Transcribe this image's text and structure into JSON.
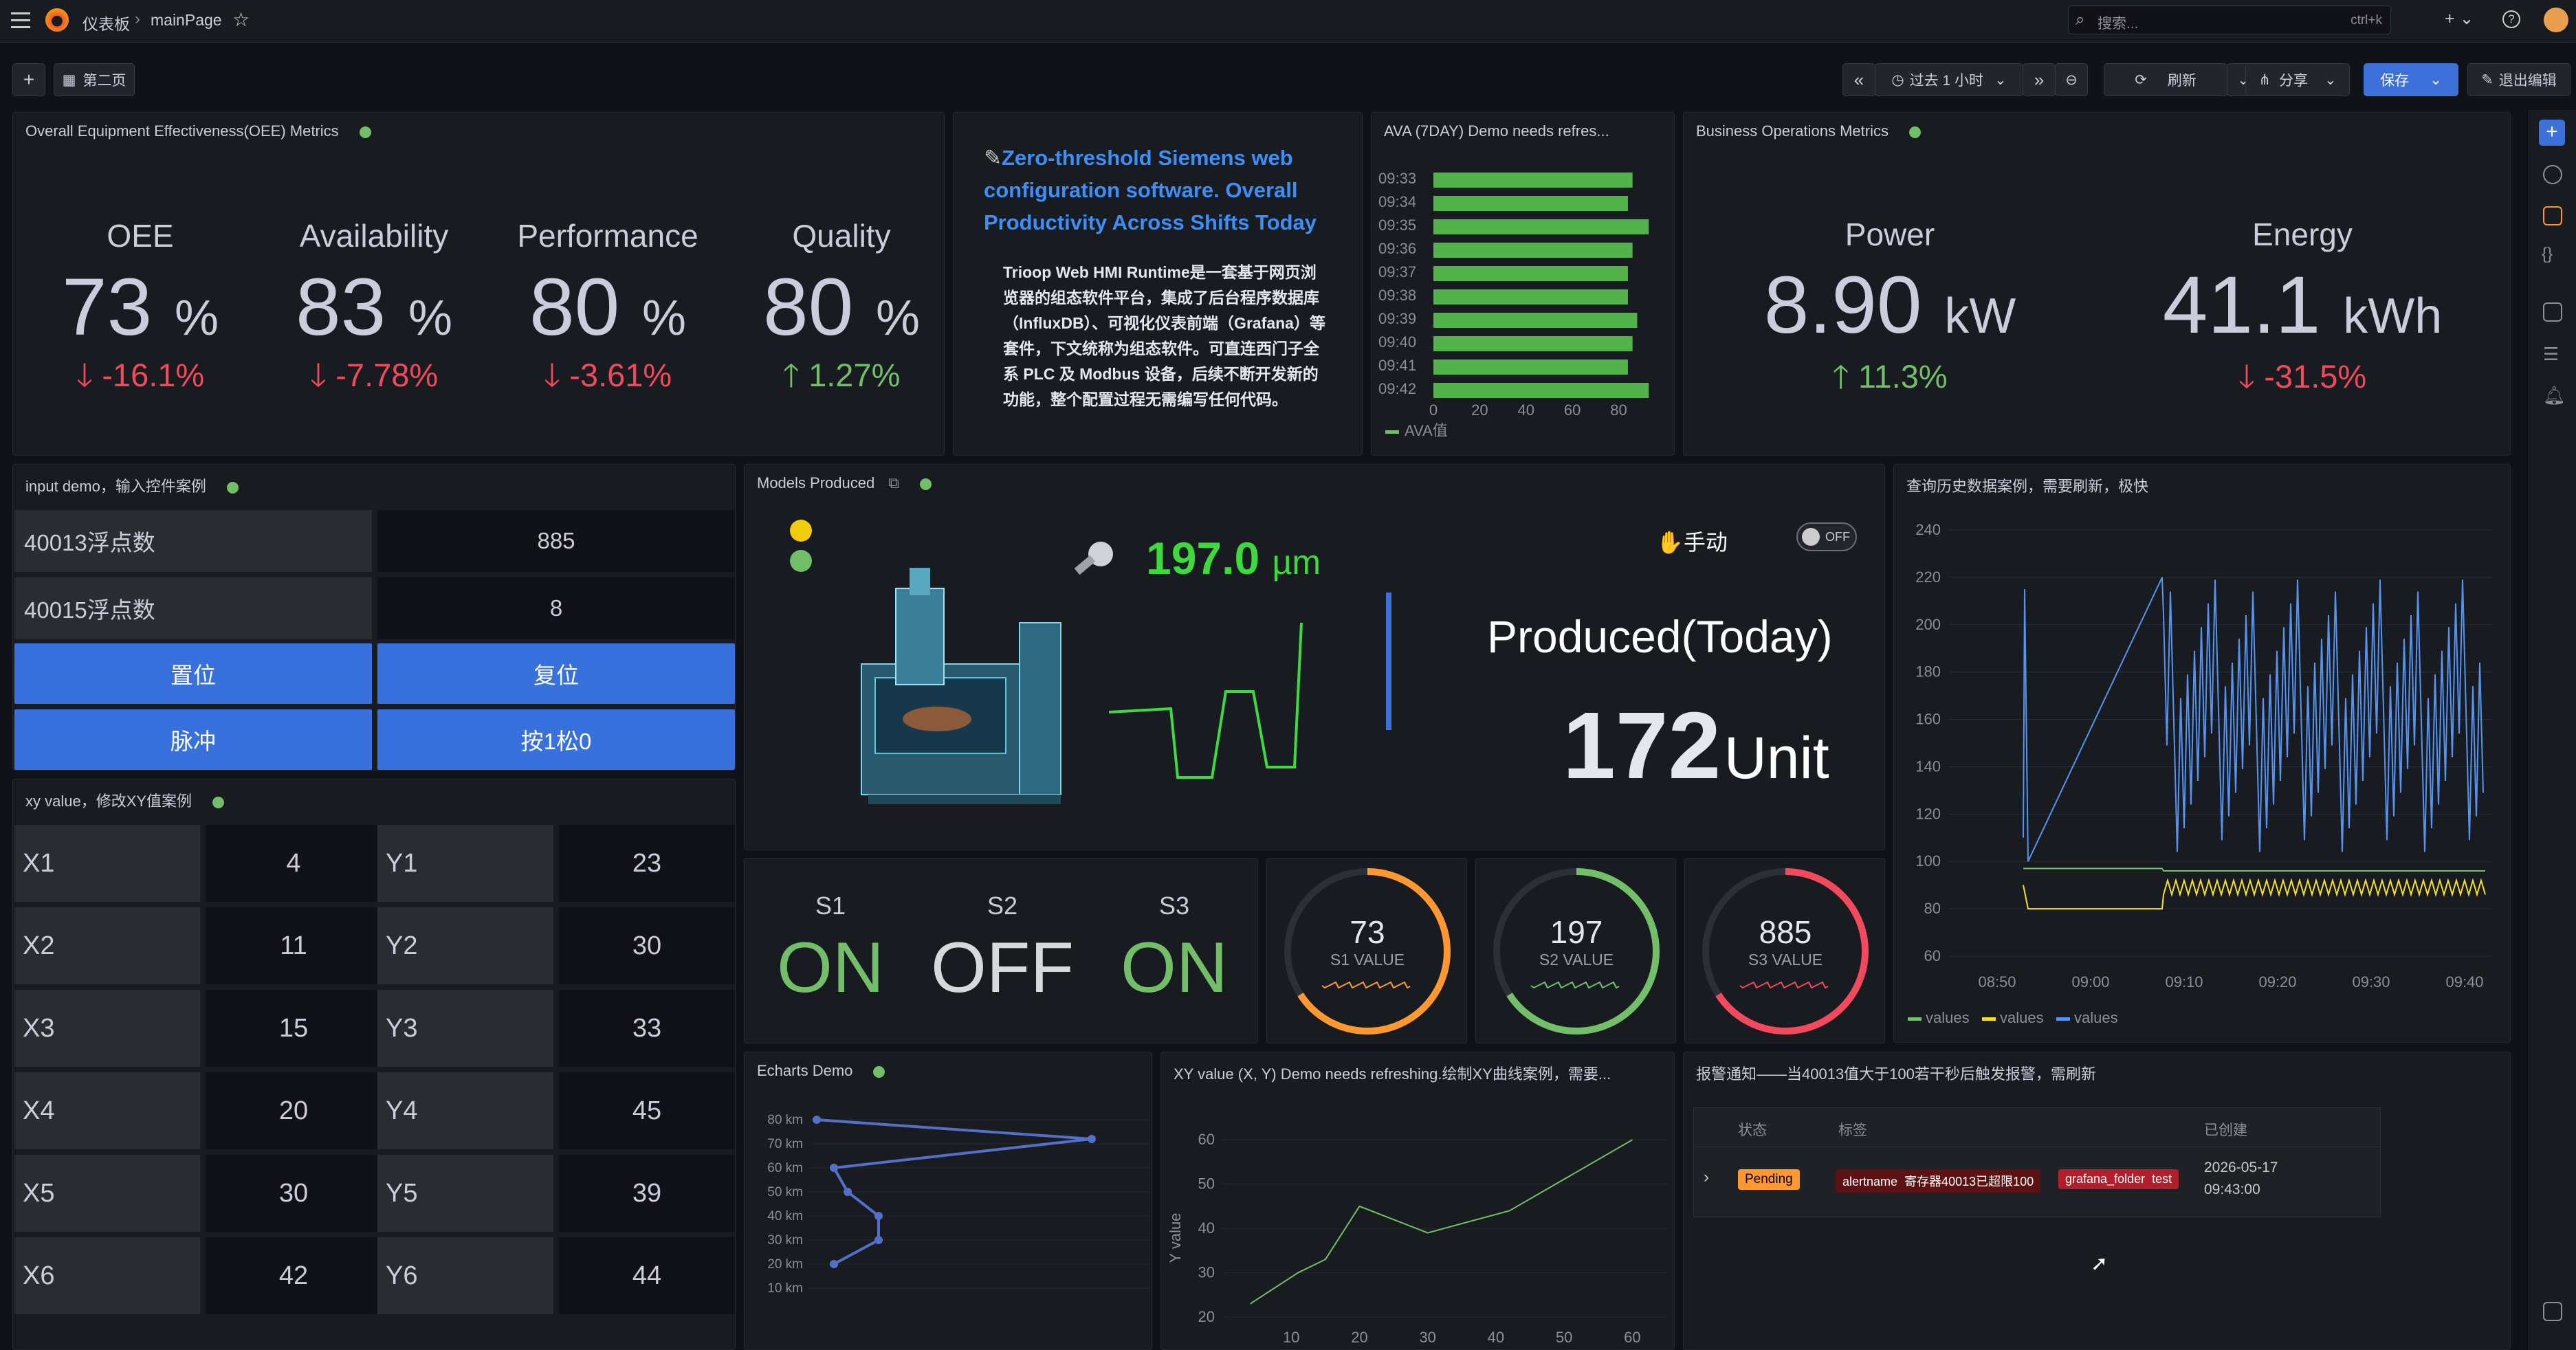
{
  "topbar": {
    "breadcrumb_dash": "仪表板",
    "breadcrumb_sep": "›",
    "breadcrumb_page": "mainPage",
    "search_placeholder": "搜索...",
    "search_shortcut": "ctrl+k",
    "add_label": "+ ⌄"
  },
  "subbar": {
    "add": "+",
    "second_page": "第二页",
    "time_range": "过去 1 小时",
    "refresh": "刷新",
    "share": "分享",
    "save": "保存",
    "exit_edit": "退出编辑"
  },
  "oee": {
    "title": "Overall Equipment Effectiveness(OEE) Metrics",
    "stats": [
      {
        "label": "OEE",
        "value": "73",
        "unit": "%",
        "delta": "-16.1%",
        "dir": "down"
      },
      {
        "label": "Availability",
        "value": "83",
        "unit": "%",
        "delta": "-7.78%",
        "dir": "down"
      },
      {
        "label": "Performance",
        "value": "80",
        "unit": "%",
        "delta": "-3.61%",
        "dir": "down"
      },
      {
        "label": "Quality",
        "value": "80",
        "unit": "%",
        "delta": "1.27%",
        "dir": "up"
      }
    ]
  },
  "intro": {
    "headline": "Zero-threshold Siemens web configuration software. Overall Productivity Across Shifts Today",
    "body": "Trioop Web HMI Runtime是一套基于网页浏览器的组态软件平台，集成了后台程序数据库（InfluxDB）、可视化仪表前端（Grafana）等套件，下文统称为组态软件。可直连西门子全系 PLC 及 Modbus 设备，后续不断开发新的功能，整个配置过程无需编写任何代码。"
  },
  "ava": {
    "title": "AVA (7DAY) Demo needs refres...",
    "legend": "AVA值",
    "xticks": [
      "0",
      "20",
      "40",
      "60",
      "80"
    ]
  },
  "business": {
    "title": "Business Operations Metrics",
    "stats": [
      {
        "label": "Power",
        "value": "8.90",
        "unit": "kW",
        "delta": "11.3%",
        "dir": "up"
      },
      {
        "label": "Energy",
        "value": "41.1",
        "unit": "kWh",
        "delta": "-31.5%",
        "dir": "down"
      }
    ]
  },
  "inputdemo": {
    "title": "input demo，输入控件案例",
    "rows": [
      {
        "label": "40013浮点数",
        "value": "885"
      },
      {
        "label": "40015浮点数",
        "value": "8"
      }
    ],
    "buttons": [
      "置位",
      "复位",
      "脉冲",
      "按1松0"
    ]
  },
  "models": {
    "title": "Models Produced",
    "measure_value": "197.0",
    "measure_unit": "µm",
    "manual": "手动",
    "toggle": "OFF",
    "produced_label": "Produced(Today)",
    "produced_value": "172",
    "produced_unit": "Unit"
  },
  "history": {
    "title": "查询历史数据案例，需要刷新，极快",
    "yticks": [
      "240",
      "220",
      "200",
      "180",
      "160",
      "140",
      "120",
      "100",
      "80",
      "60"
    ],
    "xticks": [
      "08:50",
      "09:00",
      "09:10",
      "09:20",
      "09:30",
      "09:40"
    ],
    "legend": [
      "values",
      "values",
      "values"
    ],
    "colors": [
      "#73bf69",
      "#fade2a",
      "#5794f2"
    ]
  },
  "xy": {
    "title": "xy value，修改XY值案例",
    "rows": [
      {
        "xl": "X1",
        "xv": "4",
        "yl": "Y1",
        "yv": "23"
      },
      {
        "xl": "X2",
        "xv": "11",
        "yl": "Y2",
        "yv": "30"
      },
      {
        "xl": "X3",
        "xv": "15",
        "yl": "Y3",
        "yv": "33"
      },
      {
        "xl": "X4",
        "xv": "20",
        "yl": "Y4",
        "yv": "45"
      },
      {
        "xl": "X5",
        "xv": "30",
        "yl": "Y5",
        "yv": "39"
      },
      {
        "xl": "X6",
        "xv": "42",
        "yl": "Y6",
        "yv": "44"
      }
    ]
  },
  "switches": [
    {
      "name": "S1",
      "state": "ON"
    },
    {
      "name": "S2",
      "state": "OFF"
    },
    {
      "name": "S3",
      "state": "ON"
    }
  ],
  "gauges": [
    {
      "value": "73",
      "label": "S1 VALUE",
      "color": "#ff9830"
    },
    {
      "value": "197",
      "label": "S2 VALUE",
      "color": "#73bf69"
    },
    {
      "value": "885",
      "label": "S3 VALUE",
      "color": "#f2495c"
    }
  ],
  "echarts": {
    "title": "Echarts Demo",
    "yticks": [
      "80 km",
      "70 km",
      "60 km",
      "50 km",
      "40 km",
      "30 km",
      "20 km",
      "10 km"
    ]
  },
  "xychart": {
    "title": "XY value (X, Y) Demo needs refreshing.绘制XY曲线案例，需要...",
    "ylabel": "Y value",
    "yticks": [
      "60",
      "50",
      "40",
      "30",
      "20"
    ],
    "xticks": [
      "10",
      "20",
      "30",
      "40",
      "50",
      "60"
    ]
  },
  "alert": {
    "title": "报警通知——当40013值大于100若干秒后触发报警，需刷新",
    "col_state": "状态",
    "col_label": "标签",
    "col_created": "已创建",
    "state": "Pending",
    "tag1_key": "alertname",
    "tag1_val": "寄存器40013已超限100",
    "tag2_key": "grafana_folder",
    "tag2_val": "test",
    "created_date": "2026-05-17",
    "created_time": "09:43:00"
  },
  "chart_data": [
    {
      "type": "bar",
      "title": "AVA (7DAY) Demo needs refres...",
      "orientation": "horizontal",
      "categories": [
        "09:33",
        "09:34",
        "09:35",
        "09:36",
        "09:37",
        "09:38",
        "09:39",
        "09:40",
        "09:41",
        "09:42"
      ],
      "series": [
        {
          "name": "AVA值",
          "values": [
            86,
            84,
            93,
            86,
            84,
            84,
            88,
            86,
            84,
            93
          ]
        }
      ],
      "xlim": [
        0,
        95
      ]
    },
    {
      "type": "line",
      "title": "XY value (X, Y) Demo needs refreshing.绘制XY曲线案例，需要...",
      "ylabel": "Y value",
      "x": [
        4,
        11,
        15,
        20,
        30,
        42,
        60
      ],
      "series": [
        {
          "values": [
            23,
            30,
            33,
            45,
            39,
            44,
            60
          ]
        }
      ],
      "xlim": [
        0,
        65
      ],
      "ylim": [
        20,
        65
      ]
    },
    {
      "type": "line",
      "title": "Echarts Demo",
      "series": [
        {
          "x": [
            2,
            3,
            2,
            3,
            5,
            4,
            2
          ],
          "y": [
            80,
            72,
            60,
            50,
            40,
            30,
            20
          ]
        }
      ]
    }
  ]
}
